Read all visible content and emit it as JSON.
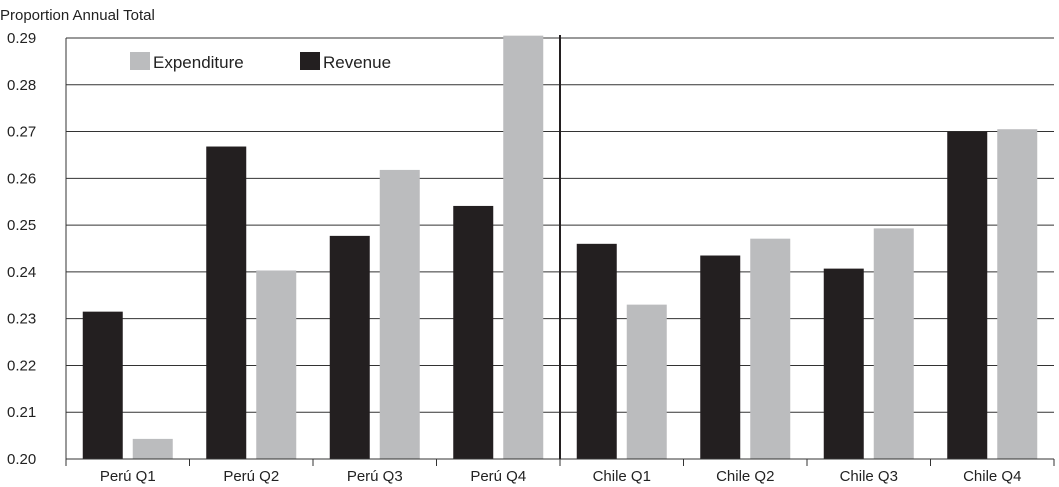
{
  "chart_data": {
    "type": "bar",
    "ylabel": "Proportion Annual Total",
    "xlabel": "",
    "ylim": [
      0.2,
      0.29
    ],
    "yticks": [
      "0.20",
      "0.21",
      "0.22",
      "0.23",
      "0.24",
      "0.25",
      "0.26",
      "0.27",
      "0.28",
      "0.29"
    ],
    "categories": [
      "Perú Q1",
      "Perú Q2",
      "Perú Q3",
      "Perú Q4",
      "Chile Q1",
      "Chile Q2",
      "Chile Q3",
      "Chile Q4"
    ],
    "grid": "horizontal",
    "legend_position": "top-left",
    "group_separator_after_index": 3,
    "series": [
      {
        "name": "Revenue",
        "color": "#231f20",
        "values": [
          0.2315,
          0.2668,
          0.2477,
          0.2541,
          0.246,
          0.2435,
          0.2407,
          0.27
        ]
      },
      {
        "name": "Expenditure",
        "color": "#bbbcbe",
        "values": [
          0.2043,
          0.2403,
          0.2618,
          0.2905,
          0.233,
          0.2471,
          0.2493,
          0.2705
        ]
      }
    ],
    "legend_order": [
      1,
      0
    ]
  }
}
